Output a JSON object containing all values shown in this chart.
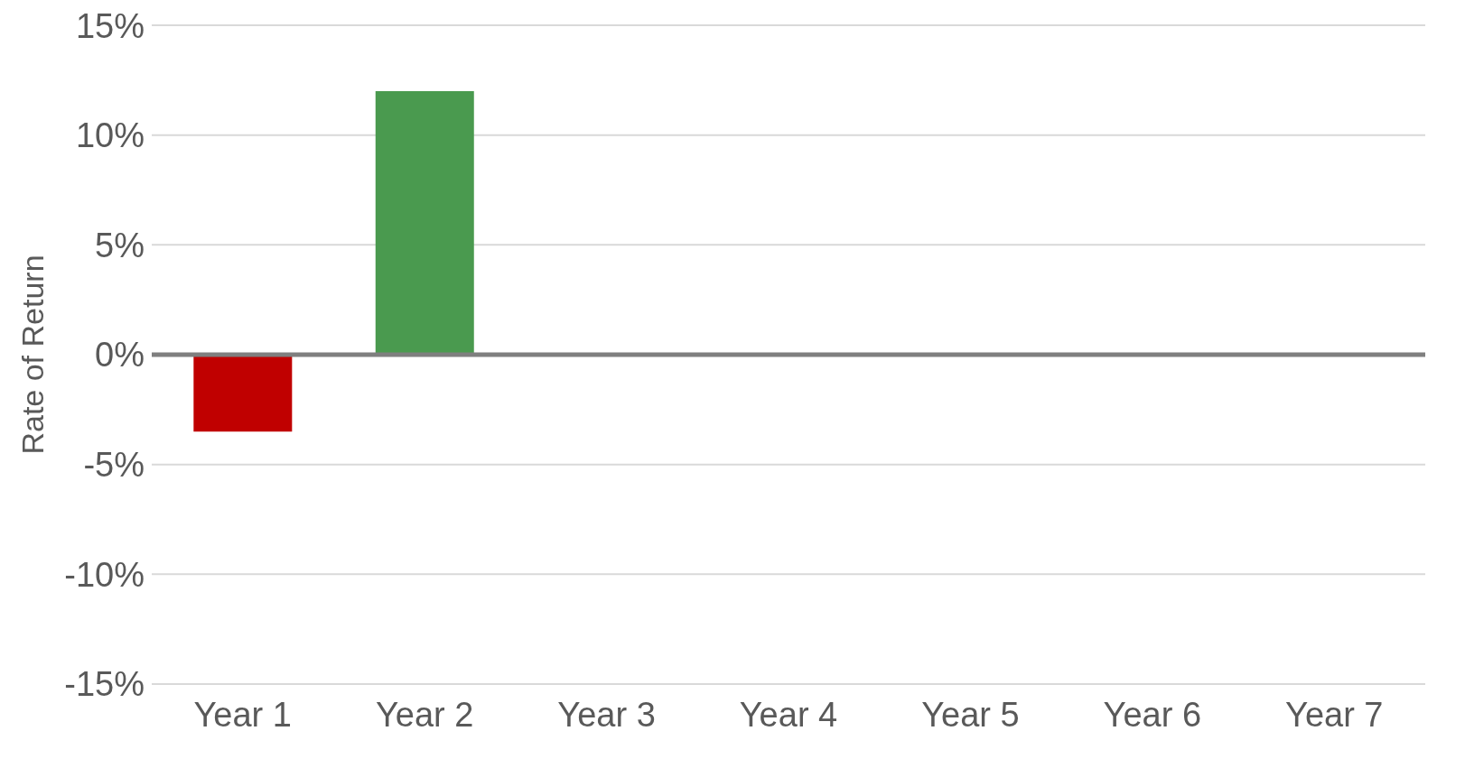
{
  "chart_data": {
    "type": "bar",
    "ylabel": "Rate of Return",
    "categories": [
      "Year 1",
      "Year 2",
      "Year 3",
      "Year 4",
      "Year 5",
      "Year 6",
      "Year 7"
    ],
    "values": [
      -3.5,
      12,
      null,
      null,
      null,
      null,
      null
    ],
    "colors": [
      "#c00000",
      "#4a9a4f",
      "#4a9a4f",
      "#4a9a4f",
      "#4a9a4f",
      "#4a9a4f",
      "#4a9a4f"
    ],
    "ylim": [
      -15,
      15
    ],
    "yticks": [
      {
        "value": -15,
        "label": "-15%"
      },
      {
        "value": -10,
        "label": "-10%"
      },
      {
        "value": -5,
        "label": "-5%"
      },
      {
        "value": 0,
        "label": "0%"
      },
      {
        "value": 5,
        "label": "5%"
      },
      {
        "value": 10,
        "label": "10%"
      },
      {
        "value": 15,
        "label": "15%"
      }
    ],
    "grid": "y",
    "legend": false
  }
}
